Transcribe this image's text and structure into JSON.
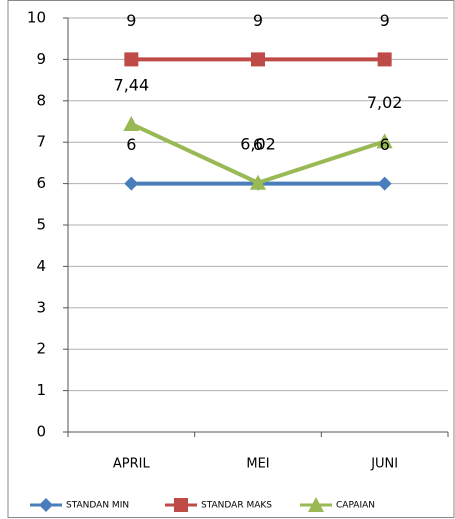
{
  "chart_data": {
    "type": "line",
    "categories": [
      "APRIL",
      "MEI",
      "JUNI"
    ],
    "series": [
      {
        "name": "STANDAN MIN",
        "color": "#4a7ebb",
        "marker": "diamond",
        "values": [
          6,
          6,
          6
        ]
      },
      {
        "name": "STANDAR MAKS",
        "color": "#be4b48",
        "marker": "square",
        "values": [
          9,
          9,
          9
        ]
      },
      {
        "name": "CAPAIAN",
        "color": "#98b954",
        "marker": "triangle",
        "values": [
          7.44,
          6.02,
          7.02
        ],
        "value_labels": [
          "7,44",
          "6,02",
          "7,02"
        ]
      }
    ],
    "ylim": [
      0,
      10
    ],
    "yticks": [
      0,
      1,
      2,
      3,
      4,
      5,
      6,
      7,
      8,
      9,
      10
    ],
    "grid": true,
    "legend": "bottom"
  }
}
